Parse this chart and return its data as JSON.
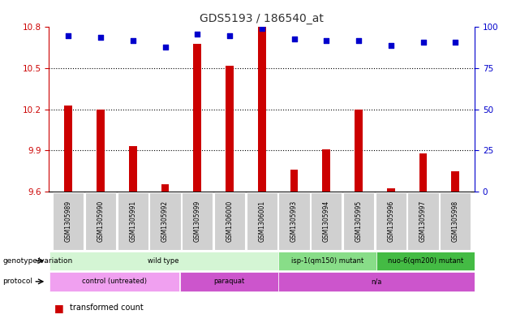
{
  "title": "GDS5193 / 186540_at",
  "samples": [
    "GSM1305989",
    "GSM1305990",
    "GSM1305991",
    "GSM1305992",
    "GSM1305999",
    "GSM1306000",
    "GSM1306001",
    "GSM1305993",
    "GSM1305994",
    "GSM1305995",
    "GSM1305996",
    "GSM1305997",
    "GSM1305998"
  ],
  "transformed_counts": [
    10.23,
    10.2,
    9.93,
    9.65,
    10.68,
    10.52,
    10.8,
    9.76,
    9.91,
    10.2,
    9.62,
    9.88,
    9.75
  ],
  "percentile_ranks": [
    95,
    94,
    92,
    88,
    96,
    95,
    99,
    93,
    92,
    92,
    89,
    91,
    91
  ],
  "ylim_left": [
    9.6,
    10.8
  ],
  "yticks_left": [
    9.6,
    9.9,
    10.2,
    10.5,
    10.8
  ],
  "ylim_right": [
    0,
    100
  ],
  "yticks_right": [
    0,
    25,
    50,
    75,
    100
  ],
  "bar_color": "#cc0000",
  "dot_color": "#0000cc",
  "bar_baseline": 9.6,
  "bar_width": 0.25,
  "genotype_groups": [
    {
      "label": "wild type",
      "start": 0,
      "end": 7,
      "color": "#d4f5d4"
    },
    {
      "label": "isp-1(qm150) mutant",
      "start": 7,
      "end": 10,
      "color": "#88dd88"
    },
    {
      "label": "nuo-6(qm200) mutant",
      "start": 10,
      "end": 13,
      "color": "#44bb44"
    }
  ],
  "protocol_groups": [
    {
      "label": "control (untreated)",
      "start": 0,
      "end": 4,
      "color": "#ee88ee"
    },
    {
      "label": "paraquat",
      "start": 4,
      "end": 7,
      "color": "#cc55cc"
    },
    {
      "label": "n/a",
      "start": 7,
      "end": 13,
      "color": "#cc55cc"
    }
  ],
  "left_axis_color": "#cc0000",
  "right_axis_color": "#0000cc",
  "background_color": "#ffffff",
  "plot_bg_color": "#ffffff",
  "label_box_color": "#d0d0d0"
}
